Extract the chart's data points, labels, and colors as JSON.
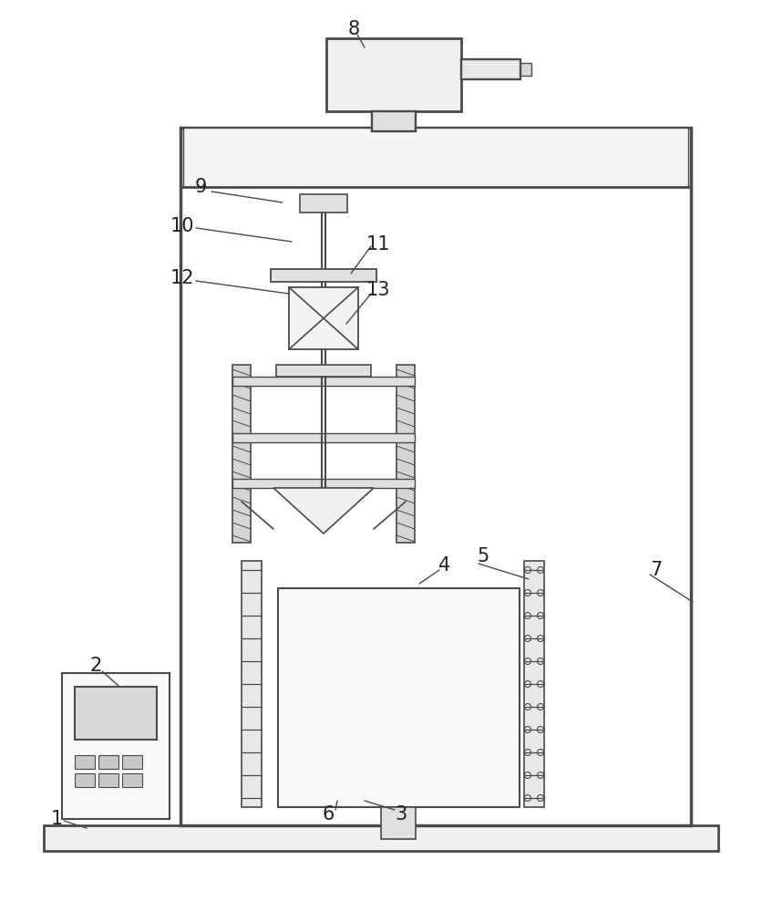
{
  "bg_color": "#ffffff",
  "line_color": "#4a4a4a",
  "label_color": "#222222",
  "fig_width": 8.36,
  "fig_height": 10.0,
  "dpi": 100,
  "lw_main": 2.0,
  "lw_detail": 1.2,
  "lw_thin": 0.8
}
